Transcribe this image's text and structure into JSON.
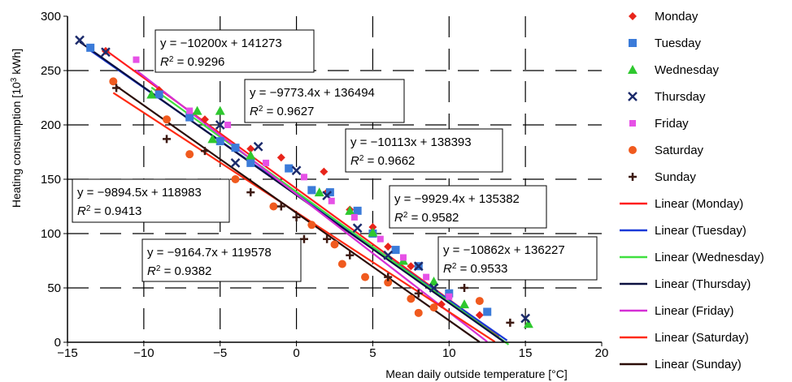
{
  "chart_data": {
    "type": "scatter",
    "xlabel": "Mean daily outside temperature [°C]",
    "ylabel_parts": [
      "Heating consumption [10",
      "3",
      " kWh]"
    ],
    "xlim": [
      -15,
      20
    ],
    "ylim": [
      0,
      300
    ],
    "x_ticks": [
      "−15",
      "−10",
      "−5",
      "0",
      "5",
      "10",
      "15",
      "20"
    ],
    "y_ticks": [
      "0",
      "50",
      "100",
      "150",
      "200",
      "250",
      "300"
    ],
    "grid": true,
    "legend_position": "right",
    "series": [
      {
        "name": "Monday",
        "marker": "diamond",
        "color": "#e8251b",
        "points": [
          [
            -12.5,
            268
          ],
          [
            -9,
            232
          ],
          [
            -6,
            205
          ],
          [
            -3,
            178
          ],
          [
            -1,
            170
          ],
          [
            1.8,
            157
          ],
          [
            2,
            138
          ],
          [
            3.5,
            122
          ],
          [
            5,
            106
          ],
          [
            6,
            88
          ],
          [
            7.5,
            70
          ],
          [
            9.5,
            35
          ],
          [
            12,
            25
          ]
        ]
      },
      {
        "name": "Tuesday",
        "marker": "square",
        "color": "#3b7bd9",
        "points": [
          [
            -13.5,
            271
          ],
          [
            -9,
            228
          ],
          [
            -7,
            207
          ],
          [
            -5,
            185
          ],
          [
            -4,
            179
          ],
          [
            -3,
            165
          ],
          [
            -0.5,
            160
          ],
          [
            1,
            140
          ],
          [
            2.2,
            138
          ],
          [
            4,
            121
          ],
          [
            5,
            100
          ],
          [
            6.5,
            85
          ],
          [
            8,
            70
          ],
          [
            10,
            45
          ],
          [
            12.5,
            28
          ]
        ]
      },
      {
        "name": "Wednesday",
        "marker": "triangle",
        "color": "#2ec82e",
        "points": [
          [
            -9.5,
            228
          ],
          [
            -6.5,
            213
          ],
          [
            -5,
            213
          ],
          [
            -5.5,
            187
          ],
          [
            -3,
            172
          ],
          [
            1.5,
            138
          ],
          [
            3.5,
            121
          ],
          [
            5,
            101
          ],
          [
            7,
            75
          ],
          [
            9,
            56
          ],
          [
            11,
            35
          ],
          [
            15.2,
            17
          ]
        ]
      },
      {
        "name": "Thursday",
        "marker": "x",
        "color": "#1b2a6b",
        "points": [
          [
            -14.2,
            278
          ],
          [
            -12.5,
            267
          ],
          [
            -5,
            200
          ],
          [
            -2.5,
            180
          ],
          [
            -4,
            165
          ],
          [
            0,
            158
          ],
          [
            2,
            135
          ],
          [
            4,
            105
          ],
          [
            6,
            80
          ],
          [
            8,
            70
          ],
          [
            9,
            50
          ],
          [
            15,
            22
          ]
        ]
      },
      {
        "name": "Friday",
        "marker": "square-small",
        "color": "#e651e6",
        "points": [
          [
            -10.5,
            260
          ],
          [
            -7,
            213
          ],
          [
            -4.5,
            200
          ],
          [
            -2,
            165
          ],
          [
            0.5,
            152
          ],
          [
            2.3,
            130
          ],
          [
            3.8,
            115
          ],
          [
            5.5,
            95
          ],
          [
            7,
            78
          ],
          [
            8.5,
            60
          ],
          [
            10,
            42
          ]
        ]
      },
      {
        "name": "Saturday",
        "marker": "circle",
        "color": "#f05a1e",
        "points": [
          [
            -12,
            240
          ],
          [
            -8.5,
            205
          ],
          [
            -7,
            173
          ],
          [
            -4,
            150
          ],
          [
            -1.5,
            125
          ],
          [
            1,
            108
          ],
          [
            2.5,
            90
          ],
          [
            3,
            72
          ],
          [
            4.5,
            60
          ],
          [
            6,
            55
          ],
          [
            7.5,
            40
          ],
          [
            8,
            27
          ],
          [
            9,
            32
          ],
          [
            12,
            38
          ]
        ]
      },
      {
        "name": "Sunday",
        "marker": "plus",
        "color": "#3d1a12",
        "points": [
          [
            -11.8,
            234
          ],
          [
            -8.5,
            187
          ],
          [
            -6,
            176
          ],
          [
            -3,
            138
          ],
          [
            -1,
            125
          ],
          [
            0,
            115
          ],
          [
            0.5,
            95
          ],
          [
            2,
            95
          ],
          [
            3.5,
            80
          ],
          [
            6,
            60
          ],
          [
            8,
            45
          ],
          [
            11,
            50
          ],
          [
            14,
            18
          ]
        ]
      }
    ],
    "trendlines": [
      {
        "name": "Linear (Monday)",
        "color": "#ff1e1e",
        "slope": -10200,
        "intercept": 141273
      },
      {
        "name": "Linear (Tuesday)",
        "color": "#1a3ad8",
        "slope": -9773.4,
        "intercept": 136494
      },
      {
        "name": "Linear (Wednesday)",
        "color": "#3fe03f",
        "slope": -10113,
        "intercept": 138393
      },
      {
        "name": "Linear (Thursday)",
        "color": "#0b1040",
        "slope": -9929.4,
        "intercept": 135382
      },
      {
        "name": "Linear (Friday)",
        "color": "#d52fd5",
        "slope": -10862,
        "intercept": 136227
      },
      {
        "name": "Linear (Saturday)",
        "color": "#ff2a12",
        "slope": -9164.7,
        "intercept": 119578
      },
      {
        "name": "Linear (Sunday)",
        "color": "#2a0c07",
        "slope": -9894.5,
        "intercept": 118983
      }
    ],
    "annotations": [
      {
        "eq": "y = −10200x + 141273",
        "r2": " = 0.9296"
      },
      {
        "eq": "y = −9773.4x + 136494",
        "r2": " = 0.9627"
      },
      {
        "eq": "y = −10113x + 138393",
        "r2": " = 0.9662"
      },
      {
        "eq": "y = −9894.5x + 118983",
        "r2": " = 0.9413"
      },
      {
        "eq": "y = −9929.4x + 135382",
        "r2": " = 0.9582"
      },
      {
        "eq": "y = −9164.7x + 119578",
        "r2": " = 0.9382"
      },
      {
        "eq": "y = −10862x + 136227",
        "r2": " = 0.9533"
      }
    ]
  }
}
